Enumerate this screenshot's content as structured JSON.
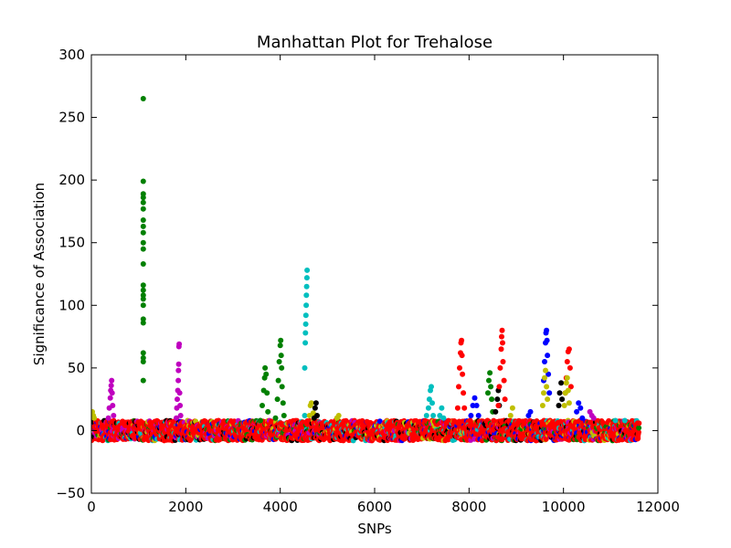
{
  "chart_data": {
    "type": "scatter",
    "title": "Manhattan Plot for Trehalose",
    "xlabel": "SNPs",
    "ylabel": "Significance of Association",
    "xlim": [
      0,
      12000
    ],
    "ylim": [
      -50,
      300
    ],
    "xticks": [
      0,
      2000,
      4000,
      6000,
      8000,
      10000,
      12000
    ],
    "yticks": [
      -50,
      0,
      50,
      100,
      150,
      200,
      250,
      300
    ],
    "xtick_labels": [
      "0",
      "2000",
      "4000",
      "6000",
      "8000",
      "10000",
      "12000"
    ],
    "ytick_labels": [
      "−50",
      "0",
      "50",
      "100",
      "150",
      "200",
      "250",
      "300"
    ],
    "grid": false,
    "baseline": {
      "x_range": [
        0,
        11600
      ],
      "y_range": [
        -8,
        8
      ],
      "colors": [
        "#ff0000",
        "#0000ff",
        "#008000",
        "#00bfbf",
        "#bf00bf",
        "#bfbf00",
        "#000000"
      ]
    },
    "series": [
      {
        "color": "#bfbf00",
        "points": [
          [
            20,
            15
          ],
          [
            40,
            12
          ],
          [
            60,
            10
          ]
        ]
      },
      {
        "color": "#bf00bf",
        "points": [
          [
            360,
            10
          ],
          [
            380,
            18
          ],
          [
            400,
            26
          ],
          [
            410,
            32
          ],
          [
            420,
            36
          ],
          [
            430,
            40
          ],
          [
            440,
            30
          ],
          [
            450,
            20
          ],
          [
            470,
            12
          ]
        ]
      },
      {
        "color": "#008000",
        "points": [
          [
            1100,
            40
          ],
          [
            1100,
            55
          ],
          [
            1100,
            58
          ],
          [
            1100,
            62
          ],
          [
            1100,
            86
          ],
          [
            1100,
            89
          ],
          [
            1100,
            100
          ],
          [
            1100,
            105
          ],
          [
            1100,
            108
          ],
          [
            1100,
            112
          ],
          [
            1100,
            116
          ],
          [
            1100,
            133
          ],
          [
            1100,
            145
          ],
          [
            1100,
            150
          ],
          [
            1100,
            158
          ],
          [
            1100,
            163
          ],
          [
            1100,
            168
          ],
          [
            1100,
            177
          ],
          [
            1100,
            182
          ],
          [
            1100,
            186
          ],
          [
            1100,
            189
          ],
          [
            1100,
            199
          ],
          [
            1100,
            265
          ]
        ]
      },
      {
        "color": "#bf00bf",
        "points": [
          [
            1800,
            10
          ],
          [
            1810,
            18
          ],
          [
            1820,
            25
          ],
          [
            1830,
            32
          ],
          [
            1840,
            40
          ],
          [
            1845,
            48
          ],
          [
            1850,
            53
          ],
          [
            1855,
            67
          ],
          [
            1860,
            69
          ],
          [
            1870,
            30
          ],
          [
            1880,
            20
          ],
          [
            1890,
            12
          ]
        ]
      },
      {
        "color": "#008000",
        "points": [
          [
            3580,
            8
          ],
          [
            3620,
            20
          ],
          [
            3650,
            32
          ],
          [
            3670,
            42
          ],
          [
            3680,
            50
          ],
          [
            3700,
            45
          ],
          [
            3720,
            30
          ],
          [
            3740,
            15
          ],
          [
            3900,
            10
          ],
          [
            3940,
            25
          ],
          [
            3960,
            40
          ],
          [
            3980,
            55
          ],
          [
            4000,
            68
          ],
          [
            4010,
            72
          ],
          [
            4020,
            60
          ],
          [
            4030,
            50
          ],
          [
            4040,
            35
          ],
          [
            4060,
            22
          ],
          [
            4080,
            12
          ]
        ]
      },
      {
        "color": "#00bfbf",
        "points": [
          [
            4520,
            50
          ],
          [
            4530,
            70
          ],
          [
            4535,
            78
          ],
          [
            4540,
            85
          ],
          [
            4545,
            92
          ],
          [
            4550,
            100
          ],
          [
            4555,
            108
          ],
          [
            4560,
            115
          ],
          [
            4565,
            122
          ],
          [
            4570,
            128
          ],
          [
            4520,
            12
          ]
        ]
      },
      {
        "color": "#bfbf00",
        "points": [
          [
            4620,
            12
          ],
          [
            4640,
            20
          ],
          [
            4660,
            22
          ],
          [
            4700,
            14
          ]
        ]
      },
      {
        "color": "#000000",
        "points": [
          [
            4720,
            10
          ],
          [
            4740,
            18
          ],
          [
            4760,
            22
          ],
          [
            4780,
            12
          ]
        ]
      },
      {
        "color": "#bfbf00",
        "points": [
          [
            5200,
            10
          ],
          [
            5240,
            12
          ]
        ]
      },
      {
        "color": "#00bfbf",
        "points": [
          [
            7100,
            12
          ],
          [
            7140,
            18
          ],
          [
            7160,
            25
          ],
          [
            7180,
            32
          ],
          [
            7200,
            35
          ],
          [
            7220,
            22
          ],
          [
            7240,
            12
          ],
          [
            7380,
            12
          ],
          [
            7420,
            18
          ],
          [
            7460,
            10
          ]
        ]
      },
      {
        "color": "#ff0000",
        "points": [
          [
            7760,
            18
          ],
          [
            7780,
            35
          ],
          [
            7800,
            50
          ],
          [
            7820,
            62
          ],
          [
            7830,
            70
          ],
          [
            7840,
            72
          ],
          [
            7850,
            60
          ],
          [
            7860,
            45
          ],
          [
            7880,
            30
          ],
          [
            7900,
            18
          ]
        ]
      },
      {
        "color": "#0000ff",
        "points": [
          [
            8040,
            12
          ],
          [
            8080,
            20
          ],
          [
            8120,
            26
          ],
          [
            8160,
            20
          ],
          [
            8200,
            12
          ]
        ]
      },
      {
        "color": "#008000",
        "points": [
          [
            8400,
            30
          ],
          [
            8420,
            40
          ],
          [
            8440,
            46
          ],
          [
            8460,
            35
          ],
          [
            8480,
            25
          ],
          [
            8500,
            15
          ]
        ]
      },
      {
        "color": "#000000",
        "points": [
          [
            8560,
            15
          ],
          [
            8600,
            25
          ],
          [
            8620,
            32
          ],
          [
            8640,
            20
          ]
        ]
      },
      {
        "color": "#ff0000",
        "points": [
          [
            8620,
            20
          ],
          [
            8640,
            35
          ],
          [
            8660,
            50
          ],
          [
            8680,
            65
          ],
          [
            8690,
            75
          ],
          [
            8700,
            80
          ],
          [
            8710,
            70
          ],
          [
            8720,
            55
          ],
          [
            8740,
            40
          ],
          [
            8760,
            25
          ]
        ]
      },
      {
        "color": "#bfbf00",
        "points": [
          [
            8880,
            12
          ],
          [
            8920,
            18
          ]
        ]
      },
      {
        "color": "#0000ff",
        "points": [
          [
            9260,
            12
          ],
          [
            9300,
            15
          ],
          [
            9580,
            40
          ],
          [
            9600,
            55
          ],
          [
            9620,
            70
          ],
          [
            9630,
            78
          ],
          [
            9640,
            80
          ],
          [
            9650,
            72
          ],
          [
            9660,
            60
          ],
          [
            9680,
            45
          ],
          [
            9700,
            30
          ]
        ]
      },
      {
        "color": "#bfbf00",
        "points": [
          [
            9560,
            20
          ],
          [
            9580,
            30
          ],
          [
            9600,
            42
          ],
          [
            9620,
            48
          ],
          [
            9640,
            35
          ],
          [
            9660,
            25
          ]
        ]
      },
      {
        "color": "#000000",
        "points": [
          [
            9900,
            20
          ],
          [
            9920,
            30
          ],
          [
            9950,
            38
          ],
          [
            9970,
            25
          ]
        ]
      },
      {
        "color": "#ff0000",
        "points": [
          [
            10040,
            30
          ],
          [
            10060,
            42
          ],
          [
            10080,
            55
          ],
          [
            10100,
            63
          ],
          [
            10120,
            65
          ],
          [
            10140,
            50
          ],
          [
            10160,
            35
          ]
        ]
      },
      {
        "color": "#bfbf00",
        "points": [
          [
            10020,
            20
          ],
          [
            10040,
            30
          ],
          [
            10060,
            38
          ],
          [
            10080,
            42
          ],
          [
            10100,
            32
          ],
          [
            10120,
            22
          ]
        ]
      },
      {
        "color": "#0000ff",
        "points": [
          [
            10280,
            15
          ],
          [
            10320,
            22
          ],
          [
            10360,
            18
          ],
          [
            10400,
            10
          ]
        ]
      },
      {
        "color": "#bf00bf",
        "points": [
          [
            10560,
            15
          ],
          [
            10600,
            12
          ],
          [
            10640,
            10
          ]
        ]
      },
      {
        "color": "#00bfbf",
        "points": [
          [
            11100,
            8
          ],
          [
            11300,
            8
          ]
        ]
      }
    ]
  }
}
